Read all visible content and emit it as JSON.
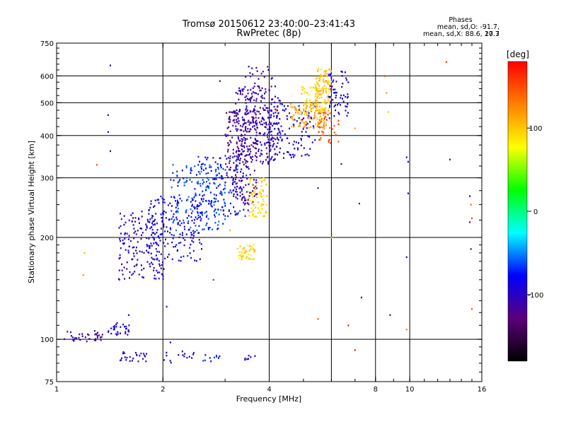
{
  "header": {
    "title_line1": "Tromsø 20150612 23:40:00–23:41:43",
    "title_line2": "RwPretec (8p)",
    "phase_title": "Phases",
    "phase_line1": "mean, sd,O: -91.7, 17.3",
    "phase_line2": "mean, sd,X:  88.6, 20.7"
  },
  "chart_data": {
    "type": "scatter",
    "xlabel": "Frequency [MHz]",
    "ylabel": "Stationary phase Virtual Height [km]",
    "xscale": "log",
    "yscale": "log",
    "xlim": [
      1,
      16
    ],
    "ylim": [
      75,
      750
    ],
    "x_ticks": [
      1,
      2,
      4,
      8,
      10,
      16
    ],
    "y_ticks": [
      75,
      100,
      200,
      300,
      400,
      500,
      600,
      750
    ],
    "x_grid": [
      2,
      4,
      6,
      8,
      10
    ],
    "y_grid": [
      100,
      200,
      300,
      400,
      500,
      600
    ],
    "grid": true,
    "colorbar": {
      "label": "[deg]",
      "range": [
        -180,
        180
      ],
      "ticks": [
        100,
        0,
        -100
      ],
      "colors": [
        "#000000",
        "#5a007a",
        "#0000ff",
        "#00ffff",
        "#00ff00",
        "#ffff00",
        "#ff8000",
        "#ff0000"
      ]
    },
    "clusters": [
      {
        "x": [
          1.05,
          1.35
        ],
        "y": [
          98,
          106
        ],
        "n": 35,
        "phase": -110
      },
      {
        "x": [
          1.4,
          1.65
        ],
        "y": [
          103,
          112
        ],
        "n": 30,
        "phase": -95
      },
      {
        "x": [
          1.45,
          1.8
        ],
        "y": [
          86,
          92
        ],
        "n": 25,
        "phase": -100
      },
      {
        "x": [
          2.0,
          2.45
        ],
        "y": [
          85,
          93
        ],
        "n": 15,
        "phase": -90
      },
      {
        "x": [
          2.6,
          2.9
        ],
        "y": [
          86,
          91
        ],
        "n": 10,
        "phase": -80
      },
      {
        "x": [
          3.4,
          3.65
        ],
        "y": [
          87,
          90
        ],
        "n": 8,
        "phase": -95
      },
      {
        "x": [
          1.5,
          2.05
        ],
        "y": [
          150,
          240
        ],
        "n": 170,
        "phase": -100
      },
      {
        "x": [
          1.8,
          2.6
        ],
        "y": [
          170,
          265
        ],
        "n": 160,
        "phase": -85
      },
      {
        "x": [
          2.1,
          3.0
        ],
        "y": [
          210,
          330
        ],
        "n": 170,
        "phase": -65
      },
      {
        "x": [
          2.5,
          3.5
        ],
        "y": [
          230,
          350
        ],
        "n": 140,
        "phase": -75
      },
      {
        "x": [
          3.0,
          3.7
        ],
        "y": [
          250,
          480
        ],
        "n": 220,
        "phase": -120
      },
      {
        "x": [
          3.2,
          4.3
        ],
        "y": [
          330,
          560
        ],
        "n": 210,
        "phase": -105
      },
      {
        "x": [
          3.4,
          4.1
        ],
        "y": [
          400,
          640
        ],
        "n": 70,
        "phase": -110
      },
      {
        "x": [
          3.5,
          3.95
        ],
        "y": [
          230,
          300
        ],
        "n": 70,
        "phase": 95
      },
      {
        "x": [
          3.25,
          3.65
        ],
        "y": [
          172,
          192
        ],
        "n": 45,
        "phase": 95
      },
      {
        "x": [
          4.0,
          5.4
        ],
        "y": [
          340,
          500
        ],
        "n": 120,
        "phase": -90
      },
      {
        "x": [
          4.6,
          5.8
        ],
        "y": [
          420,
          500
        ],
        "n": 90,
        "phase": 115
      },
      {
        "x": [
          4.9,
          5.7
        ],
        "y": [
          440,
          560
        ],
        "n": 60,
        "phase": 90
      },
      {
        "x": [
          5.4,
          6.0
        ],
        "y": [
          470,
          640
        ],
        "n": 120,
        "phase": 100
      },
      {
        "x": [
          5.9,
          6.7
        ],
        "y": [
          450,
          620
        ],
        "n": 60,
        "phase": -90
      },
      {
        "x": [
          5.5,
          6.3
        ],
        "y": [
          380,
          470
        ],
        "n": 40,
        "phase": 150
      }
    ],
    "sparse_points": [
      {
        "x": 1.12,
        "y": 100,
        "phase": -105
      },
      {
        "x": 1.3,
        "y": 328,
        "phase": 150
      },
      {
        "x": 1.42,
        "y": 645,
        "phase": -110
      },
      {
        "x": 1.4,
        "y": 460,
        "phase": -100
      },
      {
        "x": 1.4,
        "y": 410,
        "phase": -95
      },
      {
        "x": 1.42,
        "y": 360,
        "phase": -100
      },
      {
        "x": 1.2,
        "y": 180,
        "phase": 110
      },
      {
        "x": 1.19,
        "y": 155,
        "phase": 120
      },
      {
        "x": 1.6,
        "y": 118,
        "phase": -90
      },
      {
        "x": 2.05,
        "y": 125,
        "phase": -85
      },
      {
        "x": 2.1,
        "y": 98,
        "phase": -80
      },
      {
        "x": 2.78,
        "y": 150,
        "phase": -60
      },
      {
        "x": 2.9,
        "y": 580,
        "phase": -100
      },
      {
        "x": 3.5,
        "y": 640,
        "phase": -100
      },
      {
        "x": 3.1,
        "y": 210,
        "phase": 110
      },
      {
        "x": 4.2,
        "y": 475,
        "phase": 160
      },
      {
        "x": 5.5,
        "y": 280,
        "phase": -130
      },
      {
        "x": 5.5,
        "y": 115,
        "phase": 150
      },
      {
        "x": 6.0,
        "y": 200,
        "phase": 110
      },
      {
        "x": 6.4,
        "y": 330,
        "phase": -120
      },
      {
        "x": 6.7,
        "y": 110,
        "phase": 175
      },
      {
        "x": 7.0,
        "y": 93,
        "phase": 170
      },
      {
        "x": 7.0,
        "y": 420,
        "phase": 115
      },
      {
        "x": 7.2,
        "y": 252,
        "phase": -120
      },
      {
        "x": 7.3,
        "y": 133,
        "phase": -110
      },
      {
        "x": 8.5,
        "y": 600,
        "phase": 160
      },
      {
        "x": 8.6,
        "y": 535,
        "phase": 115
      },
      {
        "x": 8.7,
        "y": 470,
        "phase": 100
      },
      {
        "x": 8.8,
        "y": 118,
        "phase": -100
      },
      {
        "x": 9.8,
        "y": 345,
        "phase": -90
      },
      {
        "x": 9.9,
        "y": 335,
        "phase": -100
      },
      {
        "x": 9.9,
        "y": 270,
        "phase": -90
      },
      {
        "x": 9.8,
        "y": 175,
        "phase": -100
      },
      {
        "x": 9.8,
        "y": 107,
        "phase": 130
      },
      {
        "x": 12.7,
        "y": 660,
        "phase": 160
      },
      {
        "x": 13.0,
        "y": 340,
        "phase": -120
      },
      {
        "x": 14.8,
        "y": 265,
        "phase": -90
      },
      {
        "x": 14.9,
        "y": 250,
        "phase": 140
      },
      {
        "x": 15.0,
        "y": 228,
        "phase": 150
      },
      {
        "x": 14.8,
        "y": 222,
        "phase": -120
      },
      {
        "x": 14.9,
        "y": 185,
        "phase": -110
      },
      {
        "x": 15.0,
        "y": 123,
        "phase": 150
      }
    ]
  }
}
